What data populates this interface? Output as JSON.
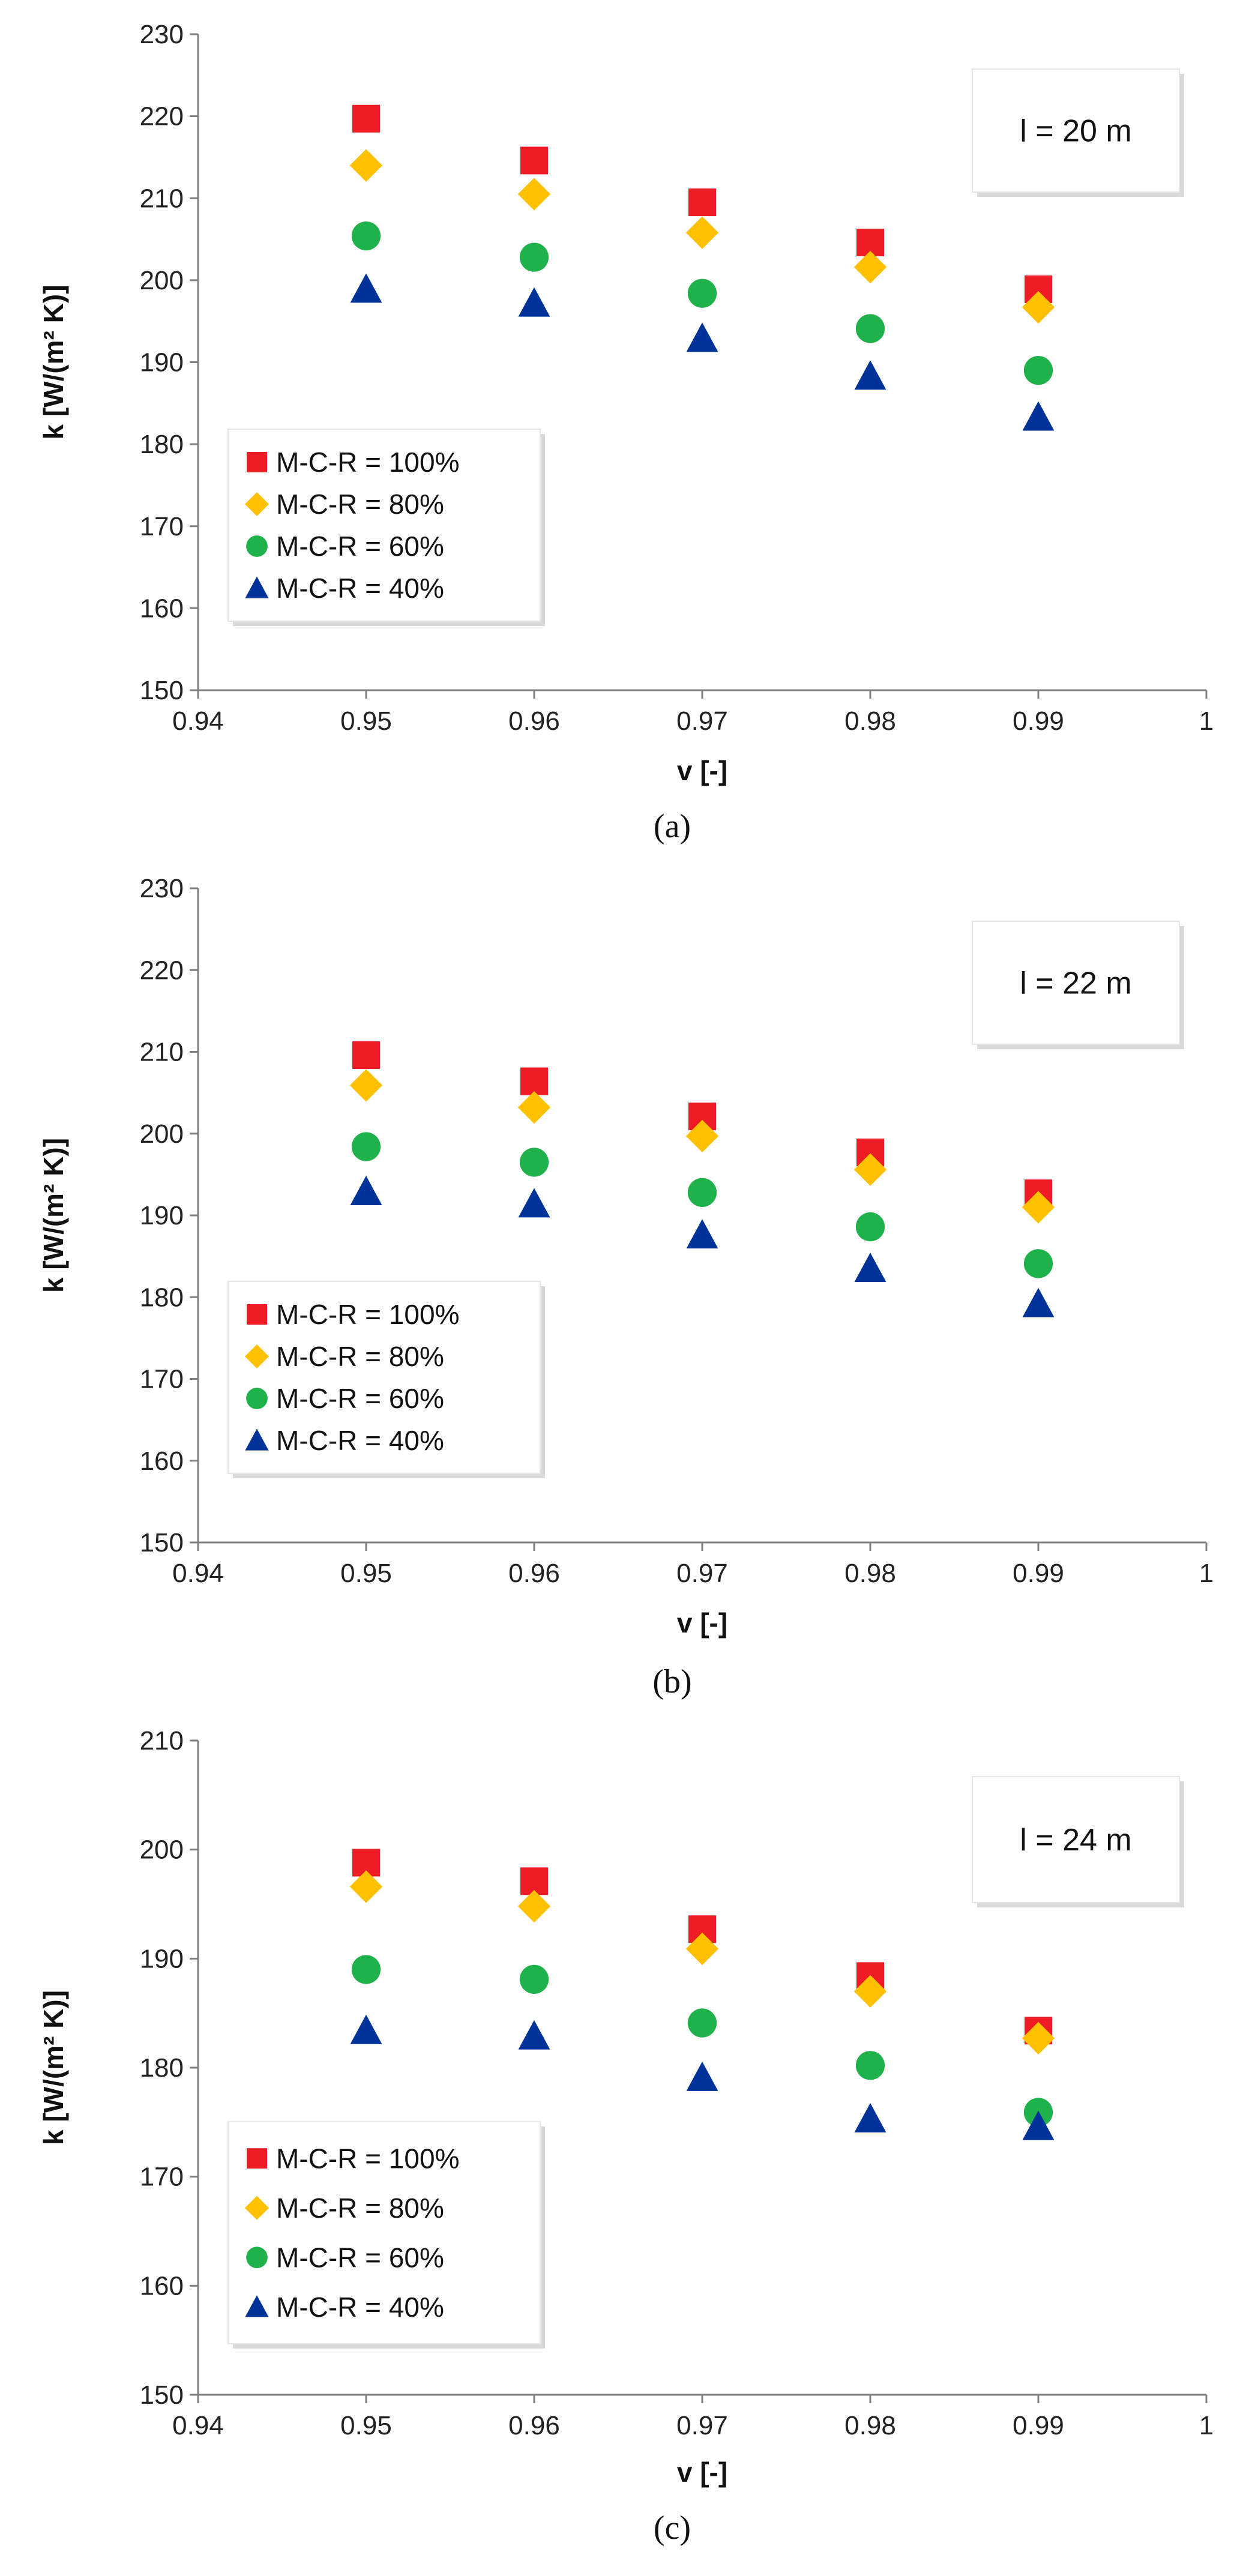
{
  "chart_data": [
    {
      "type": "scatter",
      "caption": "(a)",
      "annotation": "l = 20 m",
      "xlabel": "v [-]",
      "ylabel": "k [W/(m² K)]",
      "xlim": [
        0.94,
        1
      ],
      "ylim": [
        150,
        230
      ],
      "xticks": [
        "0.94",
        "0.95",
        "0.96",
        "0.97",
        "0.98",
        "0.99",
        "1"
      ],
      "yticks": [
        "150",
        "160",
        "170",
        "180",
        "190",
        "200",
        "210",
        "220",
        "230"
      ],
      "legend_position": "bottom-left",
      "x": [
        0.95,
        0.96,
        0.97,
        0.98,
        0.99
      ],
      "series": [
        {
          "name": "M-C-R = 100%",
          "marker": "square",
          "color": "#ee1c25",
          "values": [
            219.7,
            214.6,
            209.5,
            204.6,
            198.9
          ]
        },
        {
          "name": "M-C-R = 80%",
          "marker": "diamond",
          "color": "#ffc000",
          "values": [
            214.0,
            210.5,
            205.8,
            201.6,
            196.7
          ]
        },
        {
          "name": "M-C-R = 60%",
          "marker": "circle",
          "color": "#1fb24a",
          "values": [
            205.4,
            202.8,
            198.4,
            194.1,
            189.0
          ]
        },
        {
          "name": "M-C-R = 40%",
          "marker": "triangle",
          "color": "#003399",
          "values": [
            198.9,
            197.2,
            192.9,
            188.3,
            183.3
          ]
        }
      ]
    },
    {
      "type": "scatter",
      "caption": "(b)",
      "annotation": "l = 22 m",
      "xlabel": "v [-]",
      "ylabel": "k [W/(m² K)]",
      "xlim": [
        0.94,
        1
      ],
      "ylim": [
        150,
        230
      ],
      "xticks": [
        "0.94",
        "0.95",
        "0.96",
        "0.97",
        "0.98",
        "0.99",
        "1"
      ],
      "yticks": [
        "150",
        "160",
        "170",
        "180",
        "190",
        "200",
        "210",
        "220",
        "230"
      ],
      "legend_position": "bottom-left",
      "x": [
        0.95,
        0.96,
        0.97,
        0.98,
        0.99
      ],
      "series": [
        {
          "name": "M-C-R = 100%",
          "marker": "square",
          "color": "#ee1c25",
          "values": [
            209.6,
            206.4,
            202.1,
            197.7,
            192.7
          ]
        },
        {
          "name": "M-C-R = 80%",
          "marker": "diamond",
          "color": "#ffc000",
          "values": [
            205.9,
            203.2,
            199.7,
            195.6,
            191.0
          ]
        },
        {
          "name": "M-C-R = 60%",
          "marker": "circle",
          "color": "#1fb24a",
          "values": [
            198.4,
            196.5,
            192.8,
            188.6,
            184.1
          ]
        },
        {
          "name": "M-C-R = 40%",
          "marker": "triangle",
          "color": "#003399",
          "values": [
            192.9,
            191.4,
            187.6,
            183.5,
            179.2
          ]
        }
      ]
    },
    {
      "type": "scatter",
      "caption": "(c)",
      "annotation": "l = 24 m",
      "xlabel": "v [-]",
      "ylabel": "k [W/(m² K)]",
      "xlim": [
        0.94,
        1
      ],
      "ylim": [
        150,
        210
      ],
      "xticks": [
        "0.94",
        "0.95",
        "0.96",
        "0.97",
        "0.98",
        "0.99",
        "1"
      ],
      "yticks": [
        "150",
        "160",
        "170",
        "180",
        "190",
        "200",
        "210"
      ],
      "legend_position": "bottom-left",
      "x": [
        0.95,
        0.96,
        0.97,
        0.98,
        0.99
      ],
      "series": [
        {
          "name": "M-C-R = 100%",
          "marker": "square",
          "color": "#ee1c25",
          "values": [
            198.8,
            197.1,
            192.7,
            188.4,
            183.4
          ]
        },
        {
          "name": "M-C-R = 80%",
          "marker": "diamond",
          "color": "#ffc000",
          "values": [
            196.6,
            194.8,
            190.9,
            187.0,
            182.7
          ]
        },
        {
          "name": "M-C-R = 60%",
          "marker": "circle",
          "color": "#1fb24a",
          "values": [
            189.0,
            188.1,
            184.1,
            180.2,
            175.9
          ]
        },
        {
          "name": "M-C-R = 40%",
          "marker": "triangle",
          "color": "#003399",
          "values": [
            183.4,
            182.9,
            179.1,
            175.3,
            174.6
          ]
        }
      ]
    }
  ]
}
